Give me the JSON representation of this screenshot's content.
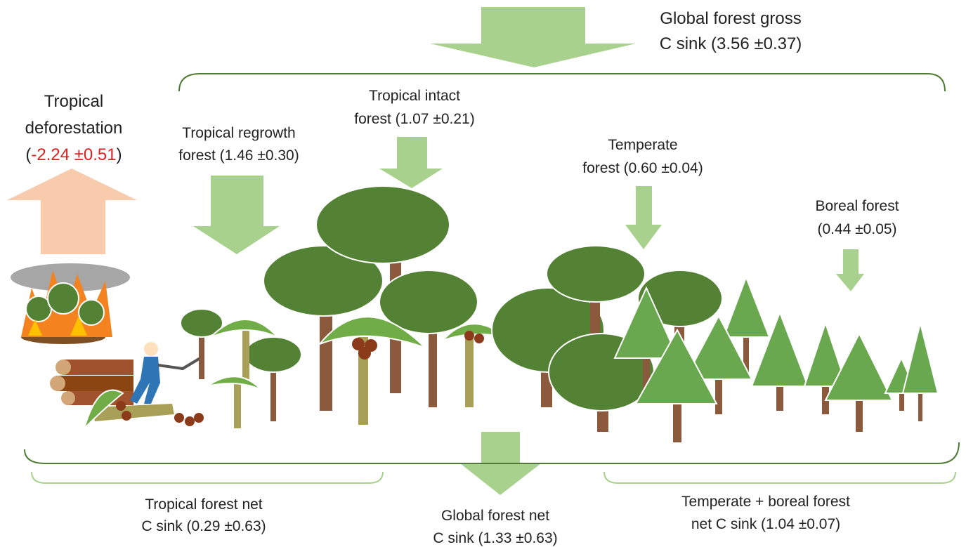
{
  "gross": {
    "lines": [
      "Global forest gross",
      "C sink (3.56 ±0.37)"
    ]
  },
  "deforestation": {
    "lines": [
      "Tropical",
      "deforestation"
    ],
    "open": "(",
    "value": "-2.24 ±0.51",
    "close": ")"
  },
  "regrowth": {
    "lines": [
      "Tropical regrowth",
      "forest (1.46 ±0.30)"
    ]
  },
  "intact": {
    "lines": [
      "Tropical intact",
      "forest (1.07 ±0.21)"
    ]
  },
  "temperate": {
    "lines": [
      "Temperate",
      "forest (0.60 ±0.04)"
    ]
  },
  "boreal": {
    "lines": [
      "Boreal forest",
      "(0.44 ±0.05)"
    ]
  },
  "tropical_net": {
    "lines": [
      "Tropical forest net",
      "C sink (0.29 ±0.63)"
    ]
  },
  "global_net": {
    "lines": [
      "Global forest net",
      "C sink (1.33 ±0.63)"
    ]
  },
  "temperate_boreal_net": {
    "lines": [
      "Temperate + boreal forest",
      "net C sink (1.04 ±0.07)"
    ]
  }
}
